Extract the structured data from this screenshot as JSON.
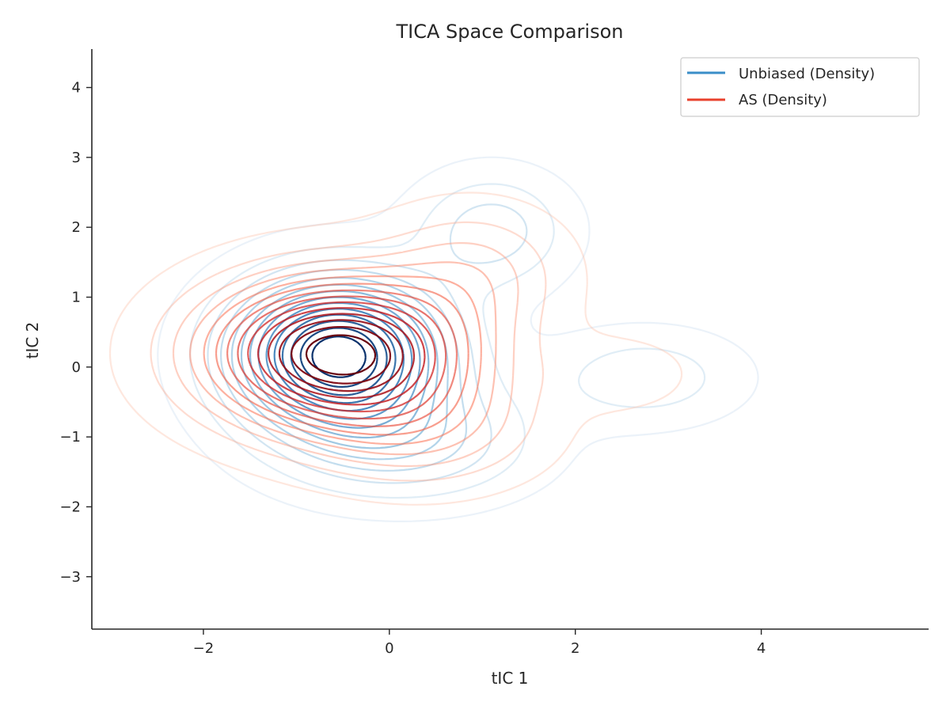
{
  "chart_data": {
    "type": "contour",
    "title": "TICA Space Comparison",
    "xlabel": "tIC 1",
    "ylabel": "tIC 2",
    "xlim": [
      -3.2,
      5.8
    ],
    "ylim": [
      -3.75,
      4.55
    ],
    "xticks": [
      -2,
      0,
      2,
      4
    ],
    "yticks": [
      -3,
      -2,
      -1,
      0,
      1,
      2,
      3,
      4
    ],
    "xtick_labels": [
      "−2",
      "0",
      "2",
      "4"
    ],
    "ytick_labels": [
      "−3",
      "−2",
      "−1",
      "0",
      "1",
      "2",
      "3",
      "4"
    ],
    "legend_position": "upper right",
    "grid": false,
    "series": [
      {
        "name": "Unbiased (Density)",
        "color": "#3a8ec8",
        "cmap": "Blues",
        "modes": [
          {
            "x": -0.55,
            "y": 0.18,
            "sx": 0.75,
            "sy": 0.72,
            "w": 1.0
          },
          {
            "x": 1.1,
            "y": 1.95,
            "sx": 0.55,
            "sy": 0.55,
            "w": 0.22
          },
          {
            "x": 2.75,
            "y": -0.15,
            "sx": 0.7,
            "sy": 0.45,
            "w": 0.16
          },
          {
            "x": 0.2,
            "y": -1.1,
            "sx": 0.9,
            "sy": 0.55,
            "w": 0.25
          }
        ]
      },
      {
        "name": "AS (Density)",
        "color": "#e8402c",
        "cmap": "Reds",
        "modes": [
          {
            "x": -0.55,
            "y": 0.2,
            "sx": 0.95,
            "sy": 0.7,
            "w": 1.0
          },
          {
            "x": 0.9,
            "y": 1.4,
            "sx": 0.65,
            "sy": 0.6,
            "w": 0.18
          },
          {
            "x": 2.5,
            "y": -0.1,
            "sx": 0.5,
            "sy": 0.35,
            "w": 0.08
          },
          {
            "x": 0.4,
            "y": -0.9,
            "sx": 0.8,
            "sy": 0.55,
            "w": 0.2
          }
        ]
      }
    ]
  }
}
